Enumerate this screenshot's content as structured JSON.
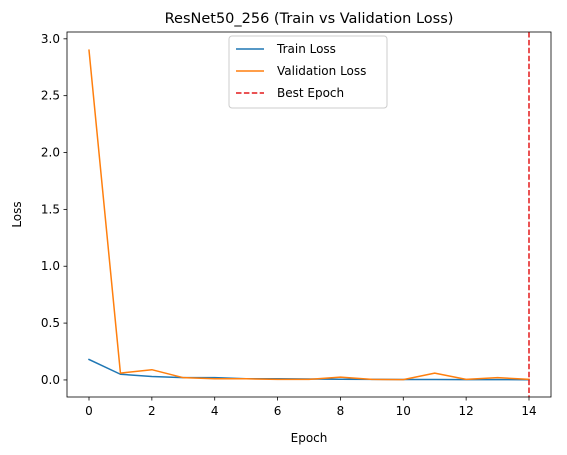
{
  "chart_data": {
    "type": "line",
    "title": "ResNet50_256 (Train vs Validation Loss)",
    "xlabel": "Epoch",
    "ylabel": "Loss",
    "xlim": [
      -0.7,
      14.7
    ],
    "ylim": [
      -0.15,
      3.06
    ],
    "xticks": [
      0,
      2,
      4,
      6,
      8,
      10,
      12,
      14
    ],
    "yticks": [
      0.0,
      0.5,
      1.0,
      1.5,
      2.0,
      2.5,
      3.0
    ],
    "ytick_labels": [
      "0.0",
      "0.5",
      "1.0",
      "1.5",
      "2.0",
      "2.5",
      "3.0"
    ],
    "grid": false,
    "legend_position": "top-center",
    "x": [
      0,
      1,
      2,
      3,
      4,
      5,
      6,
      7,
      8,
      9,
      10,
      11,
      12,
      13,
      14
    ],
    "series": [
      {
        "name": "Train Loss",
        "color": "#1f77b4",
        "values": [
          0.18,
          0.05,
          0.03,
          0.02,
          0.02,
          0.01,
          0.01,
          0.008,
          0.006,
          0.005,
          0.004,
          0.004,
          0.003,
          0.003,
          0.002
        ]
      },
      {
        "name": "Validation Loss",
        "color": "#ff7f0e",
        "values": [
          2.9,
          0.06,
          0.09,
          0.02,
          0.01,
          0.01,
          0.005,
          0.005,
          0.025,
          0.005,
          0.003,
          0.06,
          0.005,
          0.02,
          0.005
        ]
      }
    ],
    "markers": [
      {
        "name": "Best Epoch",
        "type": "vline",
        "x": 14,
        "color": "#e41a1c",
        "style": "dashed"
      }
    ]
  }
}
